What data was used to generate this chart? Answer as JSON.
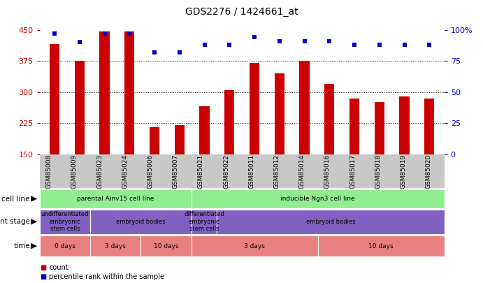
{
  "title": "GDS2276 / 1424661_at",
  "samples": [
    "GSM85008",
    "GSM85009",
    "GSM85023",
    "GSM85024",
    "GSM85006",
    "GSM85007",
    "GSM85021",
    "GSM85022",
    "GSM85011",
    "GSM85012",
    "GSM85014",
    "GSM85016",
    "GSM85017",
    "GSM85018",
    "GSM85019",
    "GSM85020"
  ],
  "counts": [
    415,
    375,
    445,
    445,
    215,
    220,
    265,
    305,
    370,
    345,
    375,
    320,
    285,
    275,
    290,
    285
  ],
  "percentiles": [
    97,
    90,
    97,
    97,
    82,
    82,
    88,
    88,
    94,
    91,
    91,
    91,
    88,
    88,
    88,
    88
  ],
  "ylim_left": [
    150,
    450
  ],
  "ylim_right": [
    0,
    100
  ],
  "yticks_left": [
    150,
    225,
    300,
    375,
    450
  ],
  "yticks_right": [
    0,
    25,
    50,
    75,
    100
  ],
  "bar_color": "#cc0000",
  "dot_color": "#0000cc",
  "cell_line_groups": [
    {
      "text": "parental Ainv15 cell line",
      "start": 0,
      "end": 6,
      "color": "#90ee90"
    },
    {
      "text": "inducible Ngn3 cell line",
      "start": 6,
      "end": 16,
      "color": "#90ee90"
    }
  ],
  "dev_stage_groups": [
    {
      "text": "undifferentiated\nembryonic\nstem cells",
      "start": 0,
      "end": 2,
      "color": "#8060c0"
    },
    {
      "text": "embryoid bodies",
      "start": 2,
      "end": 6,
      "color": "#8060c0"
    },
    {
      "text": "differentiated\nembryonic\nstem cells",
      "start": 6,
      "end": 7,
      "color": "#8060c0"
    },
    {
      "text": "embryoid bodies",
      "start": 7,
      "end": 16,
      "color": "#8060c0"
    }
  ],
  "time_groups": [
    {
      "text": "0 days",
      "start": 0,
      "end": 2,
      "color": "#e88080"
    },
    {
      "text": "3 days",
      "start": 2,
      "end": 4,
      "color": "#e88080"
    },
    {
      "text": "10 days",
      "start": 4,
      "end": 6,
      "color": "#e88080"
    },
    {
      "text": "3 days",
      "start": 6,
      "end": 11,
      "color": "#e88080"
    },
    {
      "text": "10 days",
      "start": 11,
      "end": 16,
      "color": "#e88080"
    }
  ],
  "bg_color": "#ffffff",
  "xtick_bg": "#c8c8c8"
}
